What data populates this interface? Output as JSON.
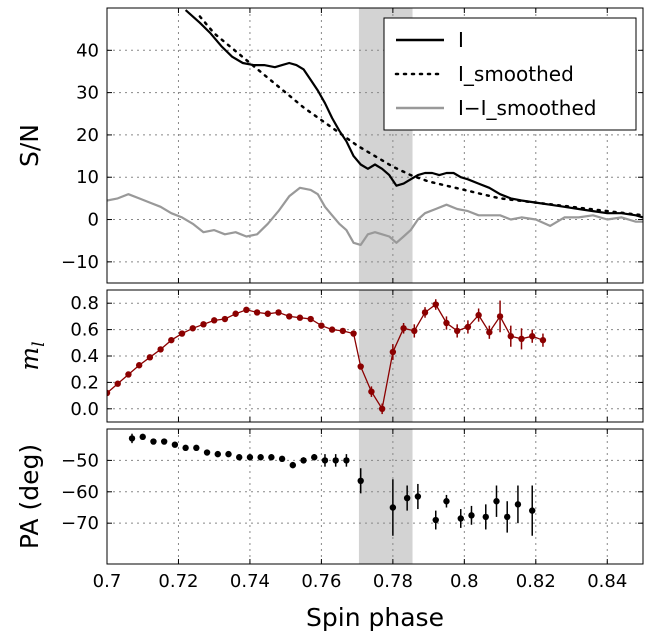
{
  "colors": {
    "I": "#000000",
    "I_smoothed": "#000000",
    "I_minus_smoothed": "#999999",
    "ml": "#8b0000",
    "pa": "#000000",
    "shade": "#d3d3d3"
  },
  "chart_data": [
    {
      "type": "line",
      "ylabel": "S/N",
      "xlim": [
        0.7,
        0.85
      ],
      "ylim": [
        -15,
        50
      ],
      "yticks": [
        -10,
        0,
        10,
        20,
        30,
        40
      ],
      "ytick_labels": [
        "−10",
        "0",
        "10",
        "20",
        "30",
        "40"
      ],
      "grid": true,
      "legend": "top-right",
      "shaded_region": [
        0.7705,
        0.7855
      ],
      "series": [
        {
          "name": "I",
          "style": "solid",
          "x": [
            0.722,
            0.726,
            0.729,
            0.732,
            0.735,
            0.738,
            0.741,
            0.744,
            0.747,
            0.749,
            0.751,
            0.753,
            0.755,
            0.757,
            0.759,
            0.761,
            0.763,
            0.765,
            0.767,
            0.769,
            0.771,
            0.773,
            0.775,
            0.777,
            0.779,
            0.781,
            0.783,
            0.785,
            0.787,
            0.789,
            0.791,
            0.793,
            0.795,
            0.797,
            0.799,
            0.801,
            0.804,
            0.807,
            0.81,
            0.813,
            0.816,
            0.82,
            0.824,
            0.828,
            0.832,
            0.836,
            0.84,
            0.844,
            0.848,
            0.85
          ],
          "values": [
            49.5,
            46.5,
            44,
            41,
            38.5,
            37,
            36.5,
            36.5,
            36,
            36.5,
            37,
            36.5,
            35.5,
            33,
            30.5,
            27.5,
            24,
            21,
            18.5,
            15,
            13,
            12,
            13,
            12,
            10.5,
            8,
            8.5,
            9.5,
            10.5,
            11,
            11,
            10.5,
            11,
            11,
            10,
            9.5,
            8.5,
            7.5,
            6,
            5,
            4.5,
            4,
            3.5,
            3,
            2.5,
            2,
            1.5,
            1.5,
            1,
            0.5
          ]
        },
        {
          "name": "I_smoothed",
          "style": "dotted",
          "x": [
            0.726,
            0.73,
            0.735,
            0.74,
            0.745,
            0.75,
            0.755,
            0.76,
            0.765,
            0.77,
            0.775,
            0.78,
            0.785,
            0.79,
            0.795,
            0.8,
            0.805,
            0.81,
            0.815,
            0.82,
            0.825,
            0.83,
            0.835,
            0.84,
            0.845,
            0.85
          ],
          "values": [
            48,
            44,
            40.5,
            37,
            33.5,
            30,
            26.5,
            23.5,
            20.5,
            17.5,
            15,
            12.5,
            10.5,
            9,
            8,
            7,
            6,
            5,
            4.5,
            4,
            3.5,
            3,
            2.5,
            2,
            1.5,
            1
          ]
        },
        {
          "name": "I−I_smoothed",
          "style": "solid",
          "x": [
            0.7,
            0.703,
            0.706,
            0.709,
            0.712,
            0.715,
            0.718,
            0.721,
            0.724,
            0.727,
            0.73,
            0.733,
            0.736,
            0.739,
            0.742,
            0.745,
            0.748,
            0.751,
            0.754,
            0.757,
            0.759,
            0.761,
            0.763,
            0.765,
            0.767,
            0.769,
            0.771,
            0.773,
            0.775,
            0.777,
            0.779,
            0.781,
            0.783,
            0.785,
            0.787,
            0.789,
            0.792,
            0.795,
            0.798,
            0.801,
            0.804,
            0.807,
            0.81,
            0.813,
            0.816,
            0.82,
            0.824,
            0.828,
            0.832,
            0.836,
            0.84,
            0.844,
            0.848,
            0.85
          ],
          "values": [
            4.5,
            5,
            6,
            5,
            4,
            3,
            1.5,
            0.5,
            -1,
            -3,
            -2.5,
            -3.5,
            -3,
            -4,
            -3.5,
            -1,
            2,
            5.5,
            7.5,
            7,
            6,
            3,
            1,
            -1,
            -2.5,
            -5.5,
            -6,
            -3.5,
            -3,
            -3.5,
            -4,
            -5.5,
            -4,
            -2.5,
            0,
            1.5,
            2.5,
            3.5,
            2.5,
            2,
            1,
            1,
            1,
            0,
            0.5,
            0,
            -1.5,
            0.5,
            0.5,
            1,
            0,
            0.5,
            -0.5,
            -0.5
          ]
        }
      ]
    },
    {
      "type": "line",
      "ylabel": "m_l",
      "xlim": [
        0.7,
        0.85
      ],
      "ylim": [
        -0.1,
        0.9
      ],
      "yticks": [
        0.0,
        0.2,
        0.4,
        0.6,
        0.8
      ],
      "ytick_labels": [
        "0.0",
        "0.2",
        "0.4",
        "0.6",
        "0.8"
      ],
      "grid": true,
      "shaded_region": [
        0.7705,
        0.7855
      ],
      "series": [
        {
          "name": "m_l",
          "x": [
            0.7,
            0.703,
            0.706,
            0.709,
            0.712,
            0.715,
            0.718,
            0.721,
            0.724,
            0.727,
            0.73,
            0.733,
            0.736,
            0.739,
            0.742,
            0.745,
            0.748,
            0.751,
            0.754,
            0.757,
            0.76,
            0.763,
            0.766,
            0.769,
            0.771,
            0.774,
            0.777,
            0.78,
            0.783,
            0.786,
            0.789,
            0.792,
            0.795,
            0.798,
            0.801,
            0.804,
            0.807,
            0.81,
            0.813,
            0.816,
            0.819,
            0.822
          ],
          "values": [
            0.12,
            0.19,
            0.26,
            0.33,
            0.39,
            0.45,
            0.52,
            0.57,
            0.61,
            0.64,
            0.67,
            0.68,
            0.72,
            0.75,
            0.73,
            0.72,
            0.73,
            0.7,
            0.69,
            0.68,
            0.63,
            0.6,
            0.59,
            0.57,
            0.32,
            0.13,
            0.0,
            0.43,
            0.61,
            0.59,
            0.73,
            0.79,
            0.65,
            0.59,
            0.62,
            0.71,
            0.58,
            0.7,
            0.55,
            0.53,
            0.55,
            0.52
          ],
          "err": [
            0.01,
            0.01,
            0.01,
            0.01,
            0.01,
            0.01,
            0.01,
            0.01,
            0.01,
            0.01,
            0.01,
            0.01,
            0.01,
            0.01,
            0.01,
            0.01,
            0.01,
            0.01,
            0.01,
            0.01,
            0.01,
            0.01,
            0.01,
            0.01,
            0.02,
            0.04,
            0.04,
            0.06,
            0.04,
            0.05,
            0.04,
            0.04,
            0.05,
            0.05,
            0.05,
            0.05,
            0.05,
            0.12,
            0.08,
            0.08,
            0.05,
            0.05
          ]
        }
      ]
    },
    {
      "type": "scatter",
      "ylabel": "PA (deg)",
      "xlabel": "Spin phase",
      "xlim": [
        0.7,
        0.85
      ],
      "ylim": [
        -83,
        -40
      ],
      "yticks": [
        -70,
        -60,
        -50
      ],
      "ytick_labels": [
        "−70",
        "−60",
        "−50"
      ],
      "xticks": [
        0.7,
        0.72,
        0.74,
        0.76,
        0.78,
        0.8,
        0.82,
        0.84
      ],
      "xtick_labels": [
        "0.7",
        "0.72",
        "0.74",
        "0.76",
        "0.78",
        "0.8",
        "0.82",
        "0.84"
      ],
      "grid": true,
      "shaded_region": [
        0.7705,
        0.7855
      ],
      "series": [
        {
          "name": "PA",
          "x": [
            0.707,
            0.71,
            0.713,
            0.716,
            0.719,
            0.722,
            0.725,
            0.728,
            0.731,
            0.734,
            0.737,
            0.74,
            0.743,
            0.746,
            0.749,
            0.752,
            0.755,
            0.758,
            0.761,
            0.764,
            0.767,
            0.771,
            0.78,
            0.784,
            0.787,
            0.792,
            0.795,
            0.799,
            0.802,
            0.806,
            0.809,
            0.812,
            0.815,
            0.819
          ],
          "values": [
            -43,
            -42.5,
            -44,
            -44,
            -45,
            -46,
            -46,
            -47.5,
            -48,
            -48,
            -49,
            -49,
            -49,
            -49,
            -49.5,
            -51.5,
            -50,
            -49,
            -50,
            -50,
            -50,
            -56.5,
            -65,
            -62,
            -61.5,
            -69,
            -63,
            -68.5,
            -67.5,
            -68,
            -63,
            -68,
            -64,
            -66
          ],
          "err": [
            1.5,
            0.8,
            0.8,
            0.8,
            0.8,
            0.8,
            0.8,
            0.8,
            0.8,
            0.8,
            0.8,
            0.8,
            0.8,
            0.8,
            0.8,
            1,
            1,
            1,
            2,
            2,
            2,
            4,
            9,
            4,
            4,
            3,
            2,
            3,
            3,
            4,
            5,
            5,
            6,
            8
          ]
        }
      ]
    }
  ]
}
